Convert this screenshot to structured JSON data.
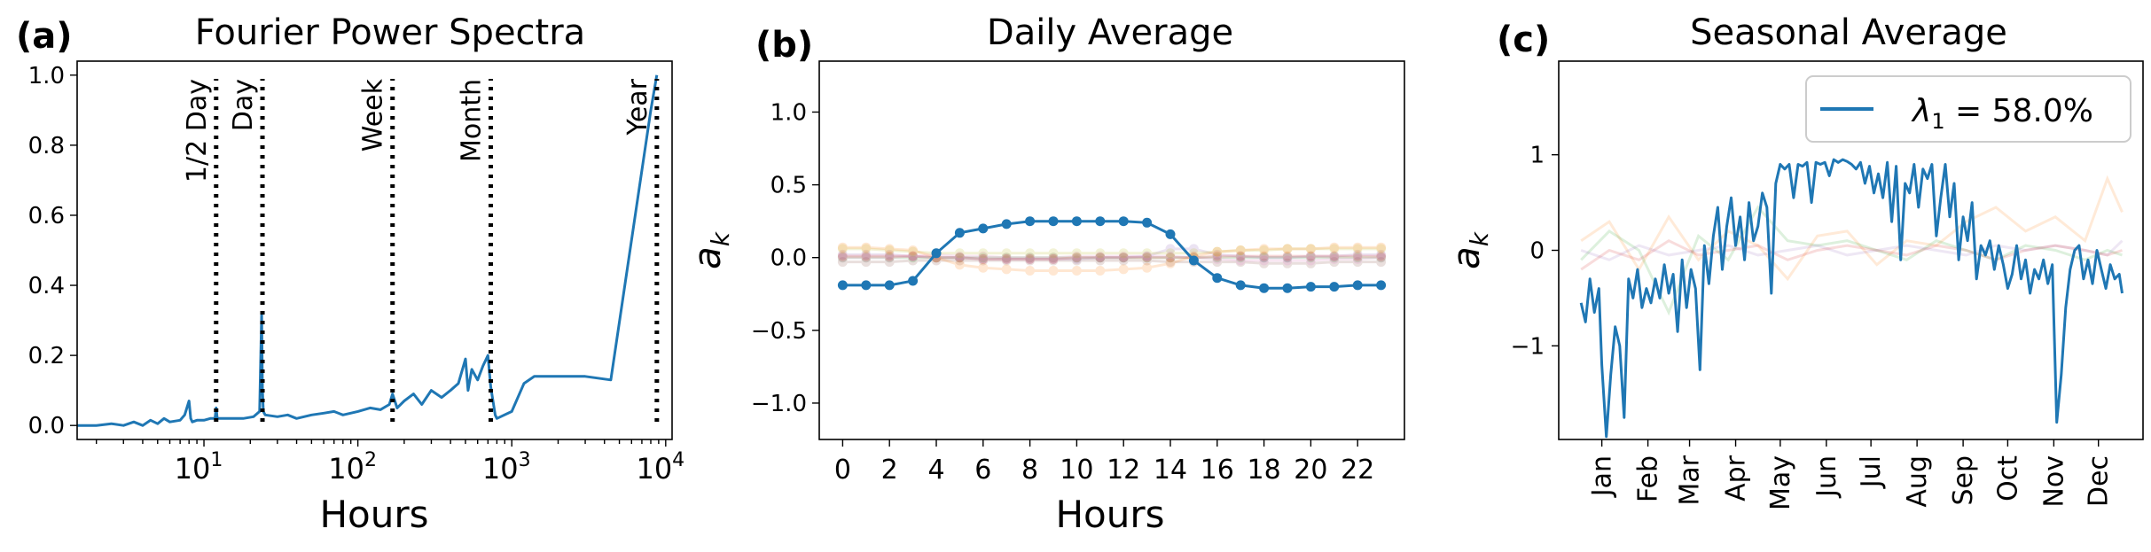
{
  "colors": {
    "primary": "#1f77b4",
    "faint": [
      "#ff7f0e",
      "#2ca02c",
      "#d62728",
      "#9467bd",
      "#8c564b",
      "#e377c2",
      "#bcbd22"
    ]
  },
  "chart_data": [
    {
      "type": "line",
      "letter": "(a)",
      "title": "Fourier Power Spectra",
      "xlabel": "Hours",
      "ylabel": "",
      "xscale": "log",
      "xlim": [
        1.5,
        11000
      ],
      "ylim": [
        -0.04,
        1.04
      ],
      "x_ticks": [
        10,
        100,
        1000,
        10000
      ],
      "x_tick_labels": [
        {
          "base": "10",
          "exp": "1"
        },
        {
          "base": "10",
          "exp": "2"
        },
        {
          "base": "10",
          "exp": "3"
        },
        {
          "base": "10",
          "exp": "4"
        }
      ],
      "y_ticks": [
        0.0,
        0.2,
        0.4,
        0.6,
        0.8,
        1.0
      ],
      "y_tick_labels": [
        "0.0",
        "0.2",
        "0.4",
        "0.6",
        "0.8",
        "1.0"
      ],
      "series": [
        {
          "color": "#1f77b4",
          "x": [
            1.5,
            2,
            2.5,
            3,
            3.5,
            4,
            4.5,
            5,
            5.5,
            6,
            7,
            7.5,
            8,
            8.2,
            8.4,
            9,
            10,
            11,
            11.8,
            12,
            12.2,
            13,
            15,
            18,
            21,
            23,
            23.7,
            24,
            24.3,
            25,
            30,
            35,
            40,
            50,
            60,
            70,
            80,
            100,
            120,
            140,
            160,
            168,
            180,
            200,
            230,
            260,
            300,
            350,
            400,
            450,
            500,
            520,
            550,
            600,
            650,
            700,
            730,
            780,
            800,
            1000,
            1200,
            1400,
            1600,
            2000,
            3000,
            4400,
            8000,
            8760
          ],
          "y": [
            0.0,
            0.0,
            0.005,
            0.0,
            0.01,
            0.0,
            0.015,
            0.005,
            0.02,
            0.01,
            0.015,
            0.03,
            0.07,
            0.02,
            0.01,
            0.015,
            0.015,
            0.02,
            0.02,
            0.05,
            0.02,
            0.02,
            0.02,
            0.02,
            0.025,
            0.04,
            0.32,
            0.1,
            0.04,
            0.03,
            0.025,
            0.03,
            0.02,
            0.03,
            0.035,
            0.04,
            0.03,
            0.04,
            0.05,
            0.045,
            0.06,
            0.09,
            0.05,
            0.07,
            0.09,
            0.06,
            0.1,
            0.08,
            0.1,
            0.12,
            0.19,
            0.1,
            0.16,
            0.13,
            0.17,
            0.2,
            0.11,
            0.03,
            0.02,
            0.04,
            0.12,
            0.14,
            0.14,
            0.14,
            0.14,
            0.13,
            0.9,
            1.0
          ]
        }
      ],
      "markers": [
        {
          "x": 12,
          "label": "1/2 Day"
        },
        {
          "x": 24,
          "label": "Day"
        },
        {
          "x": 168,
          "label": "Week"
        },
        {
          "x": 730,
          "label": "Month"
        },
        {
          "x": 8760,
          "label": "Year"
        }
      ]
    },
    {
      "type": "line",
      "letter": "(b)",
      "title": "Daily Average",
      "xlabel": "Hours",
      "ylabel": "a_k",
      "xlim": [
        -1,
        24
      ],
      "ylim": [
        -1.25,
        1.35
      ],
      "x_ticks": [
        0,
        2,
        4,
        6,
        8,
        10,
        12,
        14,
        16,
        18,
        20,
        22
      ],
      "x_tick_labels": [
        "0",
        "2",
        "4",
        "6",
        "8",
        "10",
        "12",
        "14",
        "16",
        "18",
        "20",
        "22"
      ],
      "y_ticks": [
        1.0,
        0.5,
        0.0,
        -0.5,
        -1.0
      ],
      "y_tick_labels": [
        "1.0",
        "0.5",
        "0.0",
        "−0.5",
        "−1.0"
      ],
      "x": [
        0,
        1,
        2,
        3,
        4,
        5,
        6,
        7,
        8,
        9,
        10,
        11,
        12,
        13,
        14,
        15,
        16,
        17,
        18,
        19,
        20,
        21,
        22,
        23
      ],
      "series": [
        {
          "color": "#1f77b4",
          "values": [
            -0.19,
            -0.19,
            -0.19,
            -0.16,
            0.03,
            0.17,
            0.2,
            0.23,
            0.25,
            0.25,
            0.25,
            0.25,
            0.25,
            0.24,
            0.16,
            -0.02,
            -0.14,
            -0.19,
            -0.21,
            -0.21,
            -0.2,
            -0.2,
            -0.19,
            -0.19
          ]
        },
        {
          "color": "#ff7f0e",
          "values": [
            0.07,
            0.07,
            0.06,
            0.05,
            0.0,
            -0.05,
            -0.07,
            -0.08,
            -0.09,
            -0.09,
            -0.09,
            -0.09,
            -0.08,
            -0.07,
            -0.04,
            0.01,
            0.04,
            0.05,
            0.06,
            0.06,
            0.06,
            0.07,
            0.07,
            0.07
          ]
        },
        {
          "color": "#bcbd22",
          "values": [
            0.06,
            0.06,
            0.05,
            0.04,
            0.03,
            0.03,
            0.03,
            0.03,
            0.03,
            0.03,
            0.03,
            0.03,
            0.03,
            0.03,
            0.03,
            0.03,
            0.04,
            0.05,
            0.05,
            0.06,
            0.06,
            0.06,
            0.06,
            0.06
          ]
        },
        {
          "color": "#d62728",
          "values": [
            0.01,
            0.01,
            0.01,
            0.01,
            0.0,
            0.0,
            -0.01,
            -0.01,
            -0.01,
            -0.01,
            0.0,
            0.0,
            0.0,
            0.0,
            0.0,
            0.0,
            0.01,
            0.01,
            0.01,
            0.01,
            0.01,
            0.01,
            0.01,
            0.01
          ]
        },
        {
          "color": "#e377c2",
          "values": [
            0.0,
            0.0,
            0.0,
            0.01,
            0.02,
            0.01,
            0.01,
            0.0,
            0.0,
            0.0,
            0.01,
            0.01,
            0.01,
            0.01,
            0.01,
            0.0,
            -0.01,
            -0.02,
            -0.02,
            -0.02,
            -0.02,
            -0.01,
            -0.01,
            0.0
          ]
        },
        {
          "color": "#9467bd",
          "values": [
            0.02,
            0.02,
            0.02,
            0.01,
            0.0,
            0.0,
            -0.01,
            -0.01,
            -0.01,
            -0.01,
            -0.01,
            0.0,
            0.0,
            0.01,
            0.06,
            0.06,
            0.02,
            0.01,
            0.0,
            0.0,
            0.01,
            0.01,
            0.02,
            0.02
          ]
        },
        {
          "color": "#2ca02c",
          "values": [
            0.0,
            0.0,
            0.0,
            0.0,
            0.0,
            0.0,
            0.0,
            0.0,
            0.0,
            0.0,
            0.0,
            0.0,
            0.0,
            0.0,
            0.0,
            0.0,
            0.0,
            0.0,
            0.0,
            0.0,
            0.0,
            0.0,
            0.0,
            0.0
          ]
        },
        {
          "color": "#8c564b",
          "values": [
            -0.03,
            -0.03,
            -0.03,
            -0.02,
            -0.02,
            -0.02,
            -0.02,
            -0.02,
            -0.02,
            -0.02,
            -0.02,
            -0.02,
            -0.02,
            -0.02,
            -0.03,
            -0.03,
            -0.03,
            -0.03,
            -0.04,
            -0.04,
            -0.04,
            -0.03,
            -0.03,
            -0.03
          ]
        }
      ]
    },
    {
      "type": "line",
      "letter": "(c)",
      "title": "Seasonal Average",
      "xlabel": "",
      "ylabel": "a_k",
      "xlim": [
        -14,
        379
      ],
      "ylim": [
        -1.98,
        1.98
      ],
      "x_month_ticks": [
        15,
        46,
        74,
        105,
        135,
        166,
        196,
        227,
        258,
        288,
        319,
        349
      ],
      "x_tick_labels": [
        "Jan",
        "Feb",
        "Mar",
        "Apr",
        "May",
        "Jun",
        "Jul",
        "Aug",
        "Sep",
        "Oct",
        "Nov",
        "Dec"
      ],
      "y_ticks": [
        1,
        0,
        -1
      ],
      "y_tick_labels": [
        "1",
        "0",
        "−1"
      ],
      "legend": {
        "symbol": "λ",
        "subscript": "1",
        "text": " = 58.0%",
        "placement": "upper right"
      },
      "primary": {
        "color": "#1f77b4",
        "x": [
          1,
          4,
          7,
          10,
          13,
          15,
          18,
          21,
          24,
          27,
          30,
          33,
          36,
          39,
          42,
          45,
          48,
          51,
          54,
          57,
          60,
          63,
          66,
          69,
          72,
          75,
          78,
          81,
          84,
          87,
          90,
          93,
          96,
          99,
          102,
          105,
          108,
          111,
          114,
          117,
          120,
          123,
          126,
          129,
          132,
          135,
          138,
          141,
          144,
          147,
          150,
          153,
          156,
          159,
          162,
          165,
          168,
          171,
          174,
          177,
          180,
          183,
          186,
          189,
          192,
          195,
          198,
          201,
          204,
          207,
          210,
          213,
          216,
          219,
          222,
          225,
          228,
          231,
          234,
          237,
          240,
          243,
          246,
          249,
          252,
          255,
          258,
          261,
          264,
          267,
          270,
          273,
          276,
          279,
          282,
          285,
          288,
          291,
          294,
          297,
          300,
          303,
          306,
          309,
          312,
          315,
          318,
          321,
          324,
          327,
          330,
          333,
          336,
          339,
          342,
          345,
          348,
          351,
          354,
          357,
          360,
          363,
          365
        ],
        "y": [
          -0.55,
          -0.75,
          -0.3,
          -0.65,
          -0.4,
          -1.2,
          -1.95,
          -1.3,
          -0.8,
          -1.0,
          -1.75,
          -0.3,
          -0.5,
          -0.2,
          -0.6,
          -0.4,
          -0.55,
          -0.3,
          -0.5,
          -0.15,
          -0.45,
          -0.25,
          -0.85,
          -0.1,
          -0.6,
          -0.2,
          -0.4,
          -1.25,
          0.05,
          -0.35,
          0.15,
          0.45,
          -0.2,
          0.25,
          0.55,
          0.05,
          0.35,
          -0.1,
          0.5,
          0.1,
          0.25,
          0.6,
          0.45,
          -0.45,
          0.7,
          0.9,
          0.85,
          0.9,
          0.55,
          0.9,
          0.88,
          0.92,
          0.5,
          0.92,
          0.9,
          0.92,
          0.78,
          0.95,
          0.92,
          0.95,
          0.93,
          0.9,
          0.85,
          0.92,
          0.7,
          0.88,
          0.6,
          0.8,
          0.55,
          0.92,
          0.3,
          0.88,
          -0.1,
          0.7,
          0.6,
          0.9,
          0.45,
          0.85,
          0.75,
          0.9,
          0.15,
          0.55,
          0.9,
          0.35,
          0.7,
          -0.1,
          0.35,
          0.1,
          0.5,
          -0.3,
          0.05,
          -0.05,
          0.1,
          -0.2,
          0.05,
          -0.15,
          -0.4,
          -0.25,
          0.05,
          -0.3,
          -0.1,
          -0.45,
          -0.2,
          -0.3,
          -0.1,
          -0.35,
          -0.15,
          -1.8,
          -1.3,
          -0.6,
          -0.2,
          0.0,
          0.05,
          -0.3,
          -0.1,
          -0.35,
          0.0,
          -0.2,
          -0.4,
          -0.15,
          -0.3,
          -0.25,
          -0.45
        ]
      },
      "faint": [
        {
          "color": "#ff7f0e",
          "x": [
            1,
            20,
            40,
            60,
            80,
            100,
            120,
            140,
            160,
            180,
            200,
            220,
            240,
            260,
            280,
            300,
            320,
            340,
            355,
            365
          ],
          "y": [
            0.1,
            0.3,
            -0.2,
            0.35,
            -0.1,
            0.2,
            0.05,
            -0.3,
            0.15,
            0.2,
            -0.15,
            0.1,
            0.05,
            0.3,
            0.45,
            0.2,
            0.35,
            0.1,
            0.75,
            0.4
          ]
        },
        {
          "color": "#2ca02c",
          "x": [
            1,
            20,
            40,
            60,
            80,
            100,
            120,
            140,
            160,
            180,
            200,
            220,
            240,
            260,
            280,
            300,
            320,
            340,
            355,
            365
          ],
          "y": [
            -0.1,
            0.2,
            0.0,
            -0.65,
            0.15,
            -0.1,
            0.45,
            0.1,
            0.05,
            0.1,
            0.0,
            -0.1,
            0.1,
            0.0,
            -0.1,
            0.05,
            0.0,
            -0.1,
            0.0,
            -0.05
          ]
        },
        {
          "color": "#9467bd",
          "x": [
            1,
            20,
            40,
            60,
            80,
            100,
            120,
            140,
            160,
            180,
            200,
            220,
            240,
            260,
            280,
            300,
            320,
            340,
            355,
            365
          ],
          "y": [
            0.0,
            -0.1,
            0.05,
            -0.05,
            0.0,
            0.05,
            -0.05,
            0.0,
            0.05,
            -0.05,
            0.0,
            0.05,
            0.0,
            -0.05,
            0.05,
            0.0,
            0.05,
            0.0,
            -0.05,
            0.1
          ]
        },
        {
          "color": "#d62728",
          "x": [
            1,
            20,
            40,
            60,
            80,
            100,
            120,
            140,
            160,
            180,
            200,
            220,
            240,
            260,
            280,
            300,
            320,
            340,
            355,
            365
          ],
          "y": [
            -0.2,
            0.0,
            -0.1,
            0.1,
            -0.05,
            0.0,
            0.05,
            -0.1,
            0.0,
            0.05,
            0.0,
            -0.05,
            0.05,
            0.0,
            -0.1,
            0.0,
            0.05,
            0.0,
            -0.05,
            0.0
          ]
        }
      ]
    }
  ]
}
